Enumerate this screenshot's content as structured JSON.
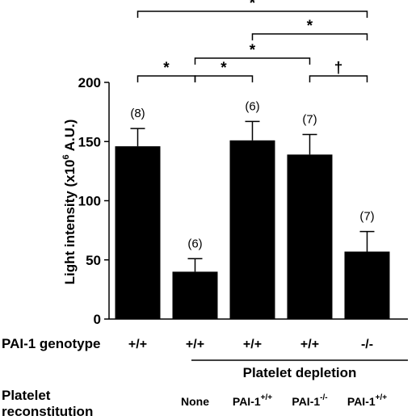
{
  "chart_data": {
    "type": "bar",
    "ylabel_main": "Light intensity (x10",
    "ylabel_sup": "6",
    "ylabel_tail": " A.U.)",
    "ylim": [
      0,
      200
    ],
    "yticks": [
      0,
      50,
      100,
      150,
      200
    ],
    "grid": false,
    "bar_color": "#000000",
    "values": [
      146,
      40,
      151,
      139,
      57
    ],
    "errors": [
      15,
      11,
      16,
      17,
      17
    ],
    "n_labels": [
      "(8)",
      "(6)",
      "(6)",
      "(7)",
      "(7)"
    ],
    "significance": [
      {
        "from": 0,
        "to": 1,
        "label": "*"
      },
      {
        "from": 1,
        "to": 2,
        "label": "*"
      },
      {
        "from": 3,
        "to": 4,
        "label": "†"
      },
      {
        "from": 1,
        "to": 3,
        "label": "*"
      },
      {
        "from": 2,
        "to": 4,
        "label": "*"
      },
      {
        "from": 0,
        "to": 4,
        "label": "*"
      }
    ]
  },
  "table": {
    "genotype_label": "PAI-1 genotype",
    "genotypes": [
      "+/+",
      "+/+",
      "+/+",
      "+/+",
      "-/-"
    ],
    "depletion_label": "Platelet depletion",
    "reconstitution_label_line1": "Platelet",
    "reconstitution_label_line2": "reconstitution",
    "reconstitution": [
      {
        "base": "None",
        "sup": ""
      },
      {
        "base": "PAI-1",
        "sup": "+/+"
      },
      {
        "base": "PAI-1",
        "sup": "-/-"
      },
      {
        "base": "PAI-1",
        "sup": "+/+"
      }
    ]
  }
}
